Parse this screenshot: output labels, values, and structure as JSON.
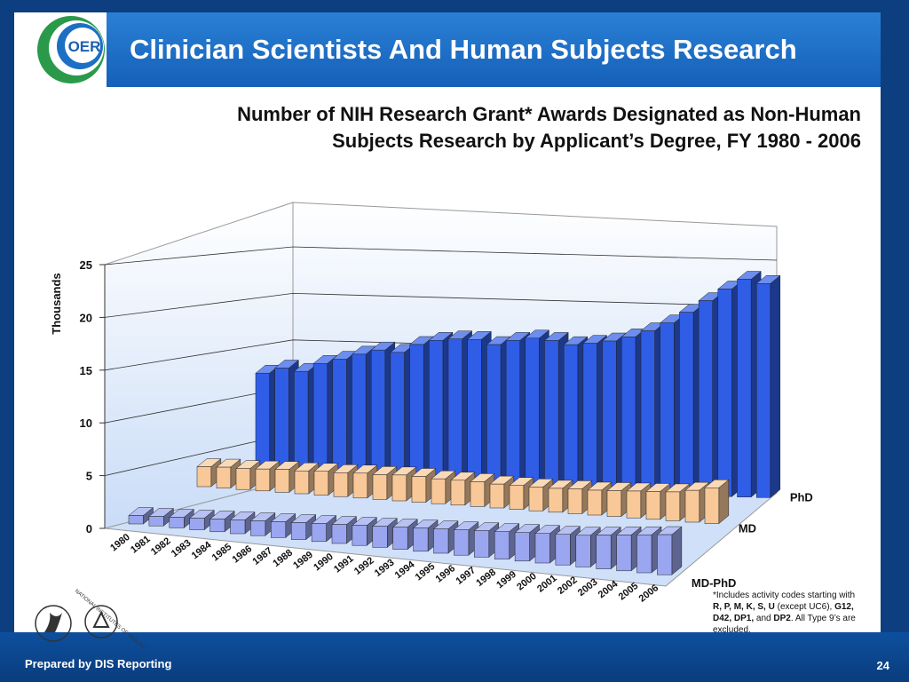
{
  "slide_title": "Clinician Scientists And Human Subjects Research",
  "logo_text": "OER",
  "nih_logo_text": "NATIONAL INSTITUTES OF HEALTH",
  "footnote_parts": [
    "*Includes activity codes starting with ",
    "R, P, M, K, S, U",
    " (except UC6), ",
    "G12, D42, DP1,",
    " and ",
    "DP2",
    ". All Type 9’s are excluded."
  ],
  "footer": "Prepared by DIS Reporting",
  "page_number": "24",
  "chart_data": {
    "type": "bar3d",
    "title": [
      "Number of NIH Research Grant* Awards Designated as Non-Human",
      "Subjects Research by Applicant’s Degree, FY 1980 - 2006"
    ],
    "y_label": "Thousands",
    "categories": [
      "1980",
      "1981",
      "1982",
      "1983",
      "1984",
      "1985",
      "1986",
      "1987",
      "1988",
      "1989",
      "1990",
      "1991",
      "1992",
      "1993",
      "1994",
      "1995",
      "1996",
      "1997",
      "1998",
      "1999",
      "2000",
      "2001",
      "2002",
      "2003",
      "2004",
      "2005",
      "2006"
    ],
    "series": [
      {
        "name": "PhD",
        "color": "#2f5de6",
        "values": [
          12.0,
          12.6,
          12.3,
          13.2,
          13.7,
          14.3,
          14.8,
          14.6,
          15.5,
          16.0,
          16.2,
          16.2,
          15.7,
          16.2,
          16.5,
          16.3,
          15.9,
          16.1,
          16.4,
          16.9,
          17.6,
          18.5,
          19.7,
          21.0,
          22.3,
          23.4,
          23.0
        ]
      },
      {
        "name": "MD",
        "color": "#f8c898",
        "values": [
          2.0,
          2.1,
          2.1,
          2.2,
          2.3,
          2.3,
          2.4,
          2.4,
          2.5,
          2.5,
          2.6,
          2.6,
          2.5,
          2.5,
          2.5,
          2.4,
          2.4,
          2.4,
          2.4,
          2.5,
          2.5,
          2.6,
          2.7,
          2.8,
          2.9,
          3.2,
          3.6
        ]
      },
      {
        "name": "MD-PhD",
        "color": "#9aa6ef",
        "values": [
          0.8,
          0.9,
          1.0,
          1.1,
          1.2,
          1.3,
          1.4,
          1.5,
          1.6,
          1.7,
          1.8,
          1.9,
          2.0,
          2.1,
          2.2,
          2.3,
          2.4,
          2.5,
          2.6,
          2.7,
          2.8,
          2.9,
          3.0,
          3.2,
          3.4,
          3.6,
          3.8
        ]
      }
    ],
    "ylim": [
      0,
      25
    ],
    "yticks": [
      0,
      5,
      10,
      15,
      20,
      25
    ],
    "grid": true
  }
}
